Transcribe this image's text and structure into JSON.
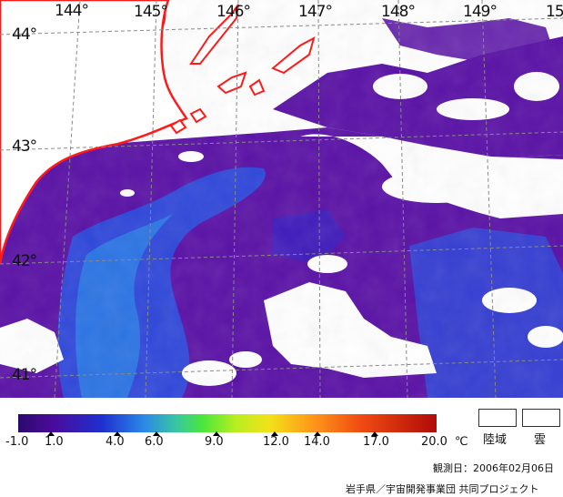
{
  "map": {
    "longitude_labels": [
      "144°",
      "145°",
      "146°",
      "147°",
      "148°",
      "149°",
      "15"
    ],
    "latitude_labels": [
      "44°",
      "43°",
      "42°",
      "41°"
    ]
  },
  "colorbar": {
    "ticks": [
      "-1.0",
      "1.0",
      "4.0",
      "6.0",
      "9.0",
      "12.0",
      "14.0",
      "17.0",
      "20.0"
    ],
    "unit": "℃",
    "colors": [
      "#2a0a6e",
      "#4b0b9a",
      "#1f2fd0",
      "#2b88e8",
      "#39c8a0",
      "#4be63c",
      "#b8ee20",
      "#f2e21a",
      "#ff9a1a",
      "#f04a12",
      "#b00b08"
    ]
  },
  "legend": {
    "land_label": "陸域",
    "cloud_label": "雲"
  },
  "observation_date": "観測日：2006年02月06日",
  "credit": "岩手県／宇宙開発事業団 共同プロジェクト",
  "colors": {
    "coastline": "#ff1a1a",
    "sea_cold": "#5a12a6",
    "sea_mid": "#2b4fe0",
    "cloud": "#ffffff"
  }
}
